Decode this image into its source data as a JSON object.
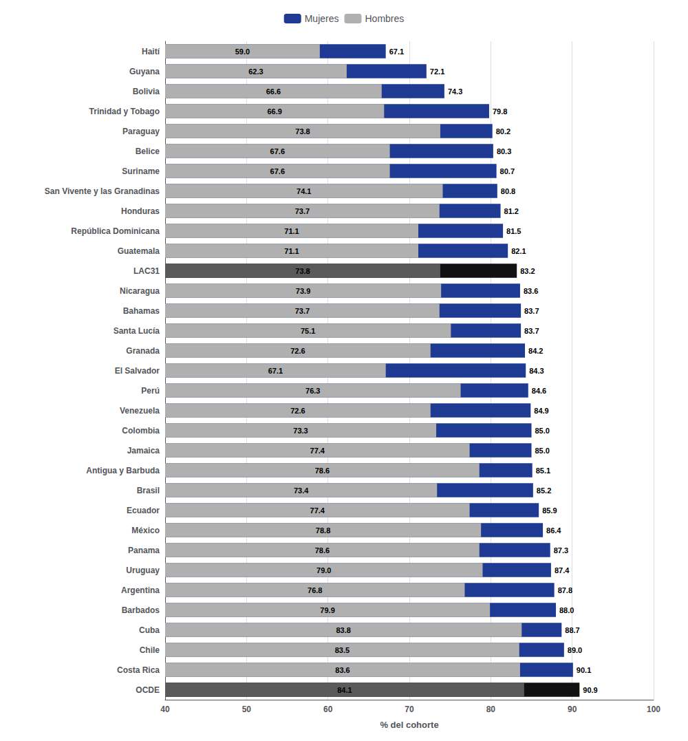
{
  "chart_data": {
    "type": "bar",
    "orientation": "horizontal",
    "xlabel": "% del cohorte",
    "categories": [
      "Haití",
      "Guyana",
      "Bolivia",
      "Trinidad y Tobago",
      "Paraguay",
      "Belice",
      "Suriname",
      "San Vivente y las Granadinas",
      "Honduras",
      "República Dominicana",
      "Guatemala",
      "LAC31",
      "Nicaragua",
      "Bahamas",
      "Santa Lucía",
      "Granada",
      "El Salvador",
      "Perú",
      "Venezuela",
      "Colombia",
      "Jamaica",
      "Antigua y Barbuda",
      "Brasil",
      "Ecuador",
      "México",
      "Panama",
      "Uruguay",
      "Argentina",
      "Barbados",
      "Cuba",
      "Chile",
      "Costa Rica",
      "OCDE"
    ],
    "series": [
      {
        "name": "Mujeres",
        "color": "#1f3a93",
        "colors": [
          "#1f3a93",
          "#1f3a93",
          "#1f3a93",
          "#1f3a93",
          "#1f3a93",
          "#1f3a93",
          "#1f3a93",
          "#1f3a93",
          "#1f3a93",
          "#1f3a93",
          "#1f3a93",
          "#111111",
          "#1f3a93",
          "#1f3a93",
          "#1f3a93",
          "#1f3a93",
          "#1f3a93",
          "#1f3a93",
          "#1f3a93",
          "#1f3a93",
          "#1f3a93",
          "#1f3a93",
          "#1f3a93",
          "#1f3a93",
          "#1f3a93",
          "#1f3a93",
          "#1f3a93",
          "#1f3a93",
          "#1f3a93",
          "#1f3a93",
          "#1f3a93",
          "#1f3a93",
          "#111111"
        ],
        "values": [
          67.1,
          72.1,
          74.3,
          79.8,
          80.2,
          80.3,
          80.7,
          80.8,
          81.2,
          81.5,
          82.1,
          83.2,
          83.6,
          83.7,
          83.7,
          84.2,
          84.3,
          84.6,
          84.9,
          85.0,
          85.0,
          85.1,
          85.2,
          85.9,
          86.4,
          87.3,
          87.4,
          87.8,
          88.0,
          88.7,
          89.0,
          90.1,
          90.9
        ],
        "value_labels": [
          "67.1",
          "72.1",
          "74.3",
          "79.8",
          "80.2",
          "80.3",
          "80.7",
          "80.8",
          "81.2",
          "81.5",
          "82.1",
          "83.2",
          "83.6",
          "83.7",
          "83.7",
          "84.2",
          "84.3",
          "84.6",
          "84.9",
          "85.0",
          "85.0",
          "85.1",
          "85.2",
          "85.9",
          "86.4",
          "87.3",
          "87.4",
          "87.8",
          "88.0",
          "88.7",
          "89.0",
          "90.1",
          "90.9"
        ]
      },
      {
        "name": "Hombres",
        "color": "#b0b0b0",
        "colors": [
          "#b0b0b0",
          "#b0b0b0",
          "#b0b0b0",
          "#b0b0b0",
          "#b0b0b0",
          "#b0b0b0",
          "#b0b0b0",
          "#b0b0b0",
          "#b0b0b0",
          "#b0b0b0",
          "#b0b0b0",
          "#5a5a5a",
          "#b0b0b0",
          "#b0b0b0",
          "#b0b0b0",
          "#b0b0b0",
          "#b0b0b0",
          "#b0b0b0",
          "#b0b0b0",
          "#b0b0b0",
          "#b0b0b0",
          "#b0b0b0",
          "#b0b0b0",
          "#b0b0b0",
          "#b0b0b0",
          "#b0b0b0",
          "#b0b0b0",
          "#b0b0b0",
          "#b0b0b0",
          "#b0b0b0",
          "#b0b0b0",
          "#b0b0b0",
          "#5a5a5a"
        ],
        "values": [
          59.0,
          62.3,
          66.6,
          66.9,
          73.8,
          67.6,
          67.6,
          74.1,
          73.7,
          71.1,
          71.1,
          73.8,
          73.9,
          73.7,
          75.1,
          72.6,
          67.1,
          76.3,
          72.6,
          73.3,
          77.4,
          78.6,
          73.4,
          77.4,
          78.8,
          78.6,
          79.0,
          76.8,
          79.9,
          83.8,
          83.5,
          83.6,
          84.1
        ],
        "value_labels": [
          "59.0",
          "62.3",
          "66.6",
          "66.9",
          "73.8",
          "67.6",
          "67.6",
          "74.1",
          "73.7",
          "71.1",
          "71.1",
          "73.8",
          "73.9",
          "73.7",
          "75.1",
          "72.6",
          "67.1",
          "76.3",
          "72.6",
          "73.3",
          "77.4",
          "78.6",
          "73.4",
          "77.4",
          "78.8",
          "78.6",
          "79.0",
          "76.8",
          "79.9",
          "83.8",
          "83.5",
          "83.6",
          "84.1"
        ]
      }
    ],
    "xlim": [
      40,
      100
    ],
    "xticks": [
      40,
      50,
      60,
      70,
      80,
      90,
      100
    ],
    "grid": true,
    "legend": "top",
    "data_labels": true
  }
}
